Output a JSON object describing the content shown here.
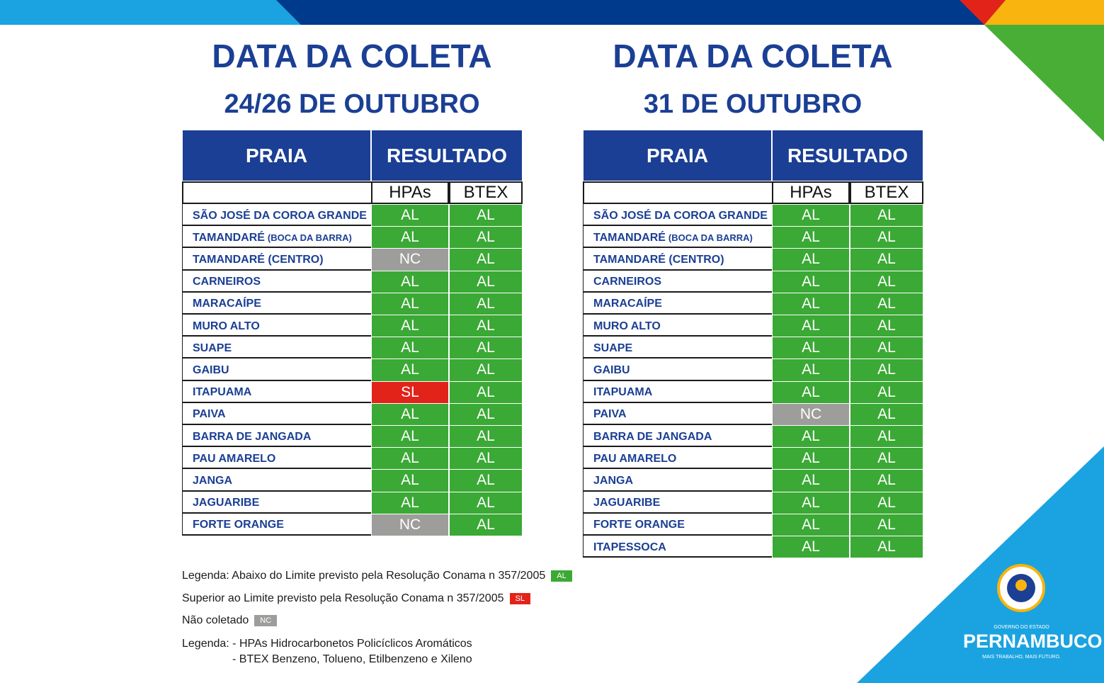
{
  "tables": [
    {
      "title": "DATA DA COLETA",
      "subtitle": "24/26 DE OUTUBRO",
      "headers": [
        "PRAIA",
        "RESULTADO"
      ],
      "subheaders": [
        "HPAs",
        "BTEX"
      ],
      "rows": [
        {
          "name": "SÃO JOSÉ DA COROA GRANDE",
          "hpas": "AL",
          "btex": "AL"
        },
        {
          "name": "TAMANDARÉ",
          "note": "(BOCA DA BARRA)",
          "hpas": "AL",
          "btex": "AL"
        },
        {
          "name": "TAMANDARÉ (CENTRO)",
          "hpas": "NC",
          "btex": "AL"
        },
        {
          "name": "CARNEIROS",
          "hpas": "AL",
          "btex": "AL"
        },
        {
          "name": "MARACAÍPE",
          "hpas": "AL",
          "btex": "AL"
        },
        {
          "name": "MURO ALTO",
          "hpas": "AL",
          "btex": "AL"
        },
        {
          "name": "SUAPE",
          "hpas": "AL",
          "btex": "AL"
        },
        {
          "name": "GAIBU",
          "hpas": "AL",
          "btex": "AL"
        },
        {
          "name": "ITAPUAMA",
          "hpas": "SL",
          "btex": "AL"
        },
        {
          "name": "PAIVA",
          "hpas": "AL",
          "btex": "AL"
        },
        {
          "name": "BARRA DE JANGADA",
          "hpas": "AL",
          "btex": "AL"
        },
        {
          "name": "PAU AMARELO",
          "hpas": "AL",
          "btex": "AL"
        },
        {
          "name": "JANGA",
          "hpas": "AL",
          "btex": "AL"
        },
        {
          "name": "JAGUARIBE",
          "hpas": "AL",
          "btex": "AL"
        },
        {
          "name": "FORTE ORANGE",
          "hpas": "NC",
          "btex": "AL"
        }
      ]
    },
    {
      "title": "DATA DA COLETA",
      "subtitle": "31 DE OUTUBRO",
      "headers": [
        "PRAIA",
        "RESULTADO"
      ],
      "subheaders": [
        "HPAs",
        "BTEX"
      ],
      "rows": [
        {
          "name": "SÃO JOSÉ DA COROA GRANDE",
          "hpas": "AL",
          "btex": "AL"
        },
        {
          "name": "TAMANDARÉ",
          "note": "(BOCA DA BARRA)",
          "hpas": "AL",
          "btex": "AL"
        },
        {
          "name": "TAMANDARÉ (CENTRO)",
          "hpas": "AL",
          "btex": "AL"
        },
        {
          "name": "CARNEIROS",
          "hpas": "AL",
          "btex": "AL"
        },
        {
          "name": "MARACAÍPE",
          "hpas": "AL",
          "btex": "AL"
        },
        {
          "name": "MURO ALTO",
          "hpas": "AL",
          "btex": "AL"
        },
        {
          "name": "SUAPE",
          "hpas": "AL",
          "btex": "AL"
        },
        {
          "name": "GAIBU",
          "hpas": "AL",
          "btex": "AL"
        },
        {
          "name": "ITAPUAMA",
          "hpas": "AL",
          "btex": "AL"
        },
        {
          "name": "PAIVA",
          "hpas": "NC",
          "btex": "AL"
        },
        {
          "name": "BARRA DE JANGADA",
          "hpas": "AL",
          "btex": "AL"
        },
        {
          "name": "PAU AMARELO",
          "hpas": "AL",
          "btex": "AL"
        },
        {
          "name": "JANGA",
          "hpas": "AL",
          "btex": "AL"
        },
        {
          "name": "JAGUARIBE",
          "hpas": "AL",
          "btex": "AL"
        },
        {
          "name": "FORTE ORANGE",
          "hpas": "AL",
          "btex": "AL"
        },
        {
          "name": "ITAPESSOCA",
          "hpas": "AL",
          "btex": "AL"
        }
      ]
    }
  ],
  "legend": [
    {
      "text": "Legenda: Abaixo do Limite previsto pela Resolução Conama n 357/2005",
      "code": "AL",
      "color": "#3ba935"
    },
    {
      "text": "Superior ao Limite previsto pela Resolução Conama n 357/2005",
      "code": "SL",
      "color": "#e2231a"
    },
    {
      "text": "Não coletado",
      "code": "NC",
      "color": "#9d9d9c"
    }
  ],
  "notes": [
    "Legenda: - HPAs Hidrocarbonetos Policíclicos Aromáticos",
    "- BTEX Benzeno, Tolueno, Etilbenzeno e Xileno"
  ],
  "logo": {
    "top": "GOVERNO DO ESTADO",
    "name": "PERNAMBUCO",
    "slogan": "MAIS TRABALHO, MAIS FUTURO."
  }
}
